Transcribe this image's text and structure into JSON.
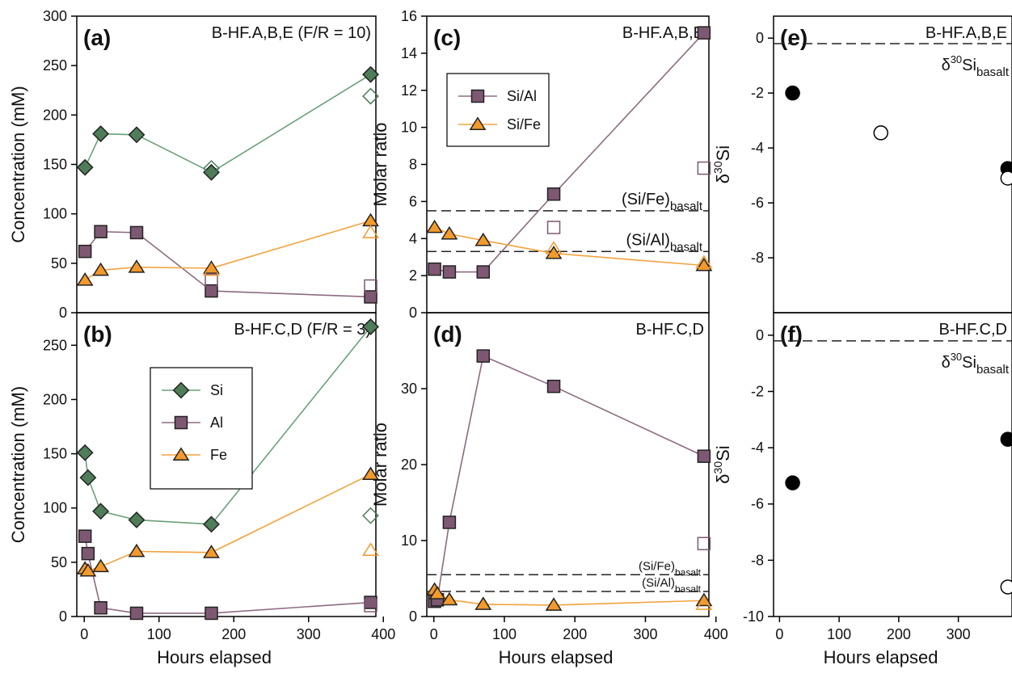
{
  "chart_data": [
    {
      "id": "a",
      "type": "line",
      "panel_label": "(a)",
      "title": "B-HF.A,B,E (F/R = 10)",
      "ylabel": "Concentration (mM)",
      "xlabel": "",
      "xlim": [
        -10,
        390
      ],
      "ylim": [
        0,
        300
      ],
      "xticks": [],
      "yticks": [
        0,
        50,
        100,
        150,
        200,
        250,
        300
      ],
      "series": [
        {
          "name": "Si",
          "marker": "diamond",
          "color": "#4e7d58",
          "line": "#6aa07a",
          "points": [
            [
              1,
              147
            ],
            [
              22,
              181
            ],
            [
              70,
              180
            ],
            [
              170,
              142
            ],
            [
              383,
              241
            ]
          ]
        },
        {
          "name": "Al",
          "marker": "square",
          "color": "#7e5872",
          "line": "#8e6a82",
          "points": [
            [
              1,
              62
            ],
            [
              22,
              82
            ],
            [
              70,
              81
            ],
            [
              170,
              22
            ],
            [
              383,
              16
            ]
          ]
        },
        {
          "name": "Fe",
          "marker": "triangle",
          "color": "#f39a2c",
          "line": "#f3a23e",
          "points": [
            [
              1,
              33
            ],
            [
              22,
              43
            ],
            [
              70,
              46
            ],
            [
              170,
              45
            ],
            [
              383,
              93
            ]
          ]
        }
      ],
      "open_points": [
        {
          "series": "Si",
          "x": 170,
          "y": 146
        },
        {
          "series": "Si",
          "x": 383,
          "y": 219
        },
        {
          "series": "Al",
          "x": 170,
          "y": 33
        },
        {
          "series": "Al",
          "x": 383,
          "y": 27
        },
        {
          "series": "Fe",
          "x": 170,
          "y": 43
        },
        {
          "series": "Fe",
          "x": 383,
          "y": 81
        }
      ]
    },
    {
      "id": "b",
      "type": "line",
      "panel_label": "(b)",
      "title": "B-HF.C,D (F/R = 3)",
      "ylabel": "Concentration (mM)",
      "xlabel": "Hours elapsed",
      "xlim": [
        -10,
        390
      ],
      "ylim": [
        0,
        280
      ],
      "xticks": [
        0,
        100,
        200,
        300,
        400
      ],
      "yticks": [
        0,
        50,
        100,
        150,
        200,
        250
      ],
      "legend": [
        "Si",
        "Al",
        "Fe"
      ],
      "series": [
        {
          "name": "Si",
          "marker": "diamond",
          "color": "#4e7d58",
          "line": "#6aa07a",
          "points": [
            [
              1,
              151
            ],
            [
              5,
              128
            ],
            [
              22,
              97
            ],
            [
              70,
              89
            ],
            [
              170,
              85
            ],
            [
              383,
              267
            ]
          ]
        },
        {
          "name": "Al",
          "marker": "square",
          "color": "#7e5872",
          "line": "#8e6a82",
          "points": [
            [
              1,
              74
            ],
            [
              5,
              58
            ],
            [
              22,
              8
            ],
            [
              70,
              3
            ],
            [
              170,
              3
            ],
            [
              383,
              13
            ]
          ]
        },
        {
          "name": "Fe",
          "marker": "triangle",
          "color": "#f39a2c",
          "line": "#f3a23e",
          "points": [
            [
              1,
              44
            ],
            [
              5,
              42
            ],
            [
              22,
              46
            ],
            [
              70,
              60
            ],
            [
              170,
              59
            ],
            [
              383,
              131
            ]
          ]
        }
      ],
      "open_points": [
        {
          "series": "Si",
          "x": 383,
          "y": 93
        },
        {
          "series": "Al",
          "x": 383,
          "y": 10
        },
        {
          "series": "Fe",
          "x": 383,
          "y": 61
        }
      ]
    },
    {
      "id": "c",
      "type": "line",
      "panel_label": "(c)",
      "title": "B-HF.A,B,E",
      "ylabel": "Molar ratio",
      "xlabel": "",
      "xlim": [
        -10,
        390
      ],
      "ylim": [
        0,
        16
      ],
      "xticks": [],
      "yticks": [
        0,
        2,
        4,
        6,
        8,
        10,
        12,
        14,
        16
      ],
      "legend": [
        "Si/Al",
        "Si/Fe"
      ],
      "series": [
        {
          "name": "Si/Al",
          "marker": "square",
          "color": "#7e5872",
          "line": "#8e6a82",
          "points": [
            [
              1,
              2.35
            ],
            [
              22,
              2.2
            ],
            [
              70,
              2.2
            ],
            [
              170,
              6.4
            ],
            [
              383,
              15.1
            ]
          ]
        },
        {
          "name": "Si/Fe",
          "marker": "triangle",
          "color": "#f39a2c",
          "line": "#f3a23e",
          "points": [
            [
              1,
              4.6
            ],
            [
              22,
              4.25
            ],
            [
              70,
              3.9
            ],
            [
              170,
              3.2
            ],
            [
              383,
              2.55
            ]
          ]
        }
      ],
      "open_points": [
        {
          "series": "Si/Al",
          "x": 170,
          "y": 4.6
        },
        {
          "series": "Si/Al",
          "x": 383,
          "y": 7.8
        },
        {
          "series": "Si/Fe",
          "x": 170,
          "y": 3.45
        },
        {
          "series": "Si/Fe",
          "x": 383,
          "y": 2.7
        }
      ],
      "reference_lines": [
        {
          "y": 5.5,
          "label_main": "(Si/Fe)",
          "label_sub": "basalt"
        },
        {
          "y": 3.3,
          "label_main": "(Si/Al)",
          "label_sub": "basalt"
        }
      ]
    },
    {
      "id": "d",
      "type": "line",
      "panel_label": "(d)",
      "title": "B-HF.C,D",
      "ylabel": "Molar ratio",
      "xlabel": "Hours elapsed",
      "xlim": [
        -10,
        390
      ],
      "ylim": [
        0,
        40
      ],
      "xticks": [
        0,
        100,
        200,
        300,
        400
      ],
      "yticks": [
        0,
        10,
        20,
        30
      ],
      "series": [
        {
          "name": "Si/Al",
          "marker": "square",
          "color": "#7e5872",
          "line": "#8e6a82",
          "points": [
            [
              1,
              2.0
            ],
            [
              5,
              2.2
            ],
            [
              22,
              12.4
            ],
            [
              70,
              34.3
            ],
            [
              170,
              30.3
            ],
            [
              383,
              21.1
            ]
          ]
        },
        {
          "name": "Si/Fe",
          "marker": "triangle",
          "color": "#f39a2c",
          "line": "#f3a23e",
          "points": [
            [
              1,
              3.5
            ],
            [
              5,
              3.0
            ],
            [
              22,
              2.2
            ],
            [
              70,
              1.6
            ],
            [
              170,
              1.5
            ],
            [
              383,
              2.1
            ]
          ]
        }
      ],
      "open_points": [
        {
          "series": "Si/Al",
          "x": 383,
          "y": 9.6
        },
        {
          "series": "Si/Fe",
          "x": 383,
          "y": 1.6
        }
      ],
      "reference_lines": [
        {
          "y": 5.5,
          "label_main": "(Si/Fe)",
          "label_sub": "basalt"
        },
        {
          "y": 3.3,
          "label_main": "(Si/Al)",
          "label_sub": "basalt"
        }
      ]
    },
    {
      "id": "e",
      "type": "scatter",
      "panel_label": "(e)",
      "title": "B-HF.A,B,E",
      "ylabel_main": "δ",
      "ylabel_sup": "30",
      "ylabel_end": "Si",
      "xlabel": "",
      "xlim": [
        -10,
        390
      ],
      "ylim": [
        -10,
        0.8
      ],
      "xticks": [],
      "yticks": [
        0,
        -2,
        -4,
        -6,
        -8
      ],
      "series": [
        {
          "name": "",
          "marker": "circle",
          "fill": "filled",
          "points": [
            [
              22,
              -2.0
            ],
            [
              383,
              -4.75
            ]
          ]
        },
        {
          "name": "",
          "marker": "circle",
          "fill": "open",
          "points": [
            [
              170,
              -3.45
            ],
            [
              383,
              -5.1
            ]
          ]
        }
      ],
      "reference_lines": [
        {
          "y": -0.2,
          "label_main": "δ",
          "label_sup": "30",
          "label_mid": "Si",
          "label_sub": "basalt"
        }
      ]
    },
    {
      "id": "f",
      "type": "scatter",
      "panel_label": "(f)",
      "title": "B-HF.C,D",
      "ylabel_main": "δ",
      "ylabel_sup": "30",
      "ylabel_end": "Si",
      "xlabel": "Hours elapsed",
      "xlim": [
        -10,
        390
      ],
      "ylim": [
        -10,
        0.8
      ],
      "xticks": [
        0,
        100,
        200,
        300
      ],
      "yticks": [
        0,
        -2,
        -4,
        -6,
        -8,
        -10
      ],
      "series": [
        {
          "name": "",
          "marker": "circle",
          "fill": "filled",
          "points": [
            [
              22,
              -5.25
            ],
            [
              383,
              -3.7
            ]
          ]
        },
        {
          "name": "",
          "marker": "circle",
          "fill": "open",
          "points": [
            [
              383,
              -8.95
            ]
          ]
        }
      ],
      "reference_lines": [
        {
          "y": -0.2,
          "label_main": "δ",
          "label_sup": "30",
          "label_mid": "Si",
          "label_sub": "basalt"
        }
      ]
    }
  ]
}
